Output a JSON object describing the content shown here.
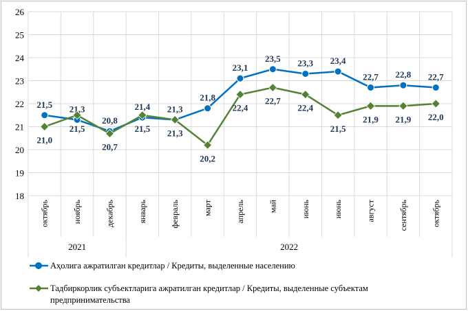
{
  "chart_data": {
    "type": "line",
    "title": "",
    "xlabel": "",
    "ylabel": "",
    "ylim": [
      18,
      26
    ],
    "yticks": [
      "18",
      "19",
      "20",
      "21",
      "22",
      "23",
      "24",
      "25",
      "26"
    ],
    "grid": true,
    "legend_placement": "bottom",
    "categories": [
      "октябрь",
      "ноябрь",
      "декабрь",
      "январь",
      "февраль",
      "март",
      "апрель",
      "май",
      "июнь",
      "июнь",
      "август",
      "сентябрь",
      "октябрь"
    ],
    "year_groups": [
      {
        "label": "2021",
        "count": 3
      },
      {
        "label": "2022",
        "count": 10
      }
    ],
    "series": [
      {
        "name": "Аҳолига ажратилган кредитлар / Кредиты, выделенные населению",
        "color": "#0070c0",
        "marker": "circle",
        "values": [
          21.5,
          21.3,
          20.8,
          21.4,
          21.3,
          21.8,
          23.1,
          23.5,
          23.3,
          23.4,
          22.7,
          22.8,
          22.7
        ],
        "labels": [
          "21,5",
          "21,3",
          "20,8",
          "21,4",
          "21,3",
          "21,8",
          "23,1",
          "23,5",
          "23,3",
          "23,4",
          "22,7",
          "22,8",
          "22,7"
        ]
      },
      {
        "name": "Тадбиркорлик субъектларига ажратилган кредитлар / Кредиты, выделенные субъектам предпринимательства",
        "legend_lines": [
          "Тадбиркорлик субъектларига ажратилган кредитлар / Кредиты, выделенные субъектам",
          "предпринимательства"
        ],
        "color": "#548235",
        "marker": "diamond",
        "values": [
          21.0,
          21.5,
          20.7,
          21.5,
          21.3,
          20.2,
          22.4,
          22.7,
          22.4,
          21.5,
          21.9,
          21.9,
          22.0
        ],
        "labels": [
          "21,0",
          "21,5",
          "20,7",
          "21,5",
          "21,3",
          "20,2",
          "22,4",
          "22,7",
          "22,4",
          "21,5",
          "21,9",
          "21,9",
          "22,0"
        ]
      }
    ]
  }
}
